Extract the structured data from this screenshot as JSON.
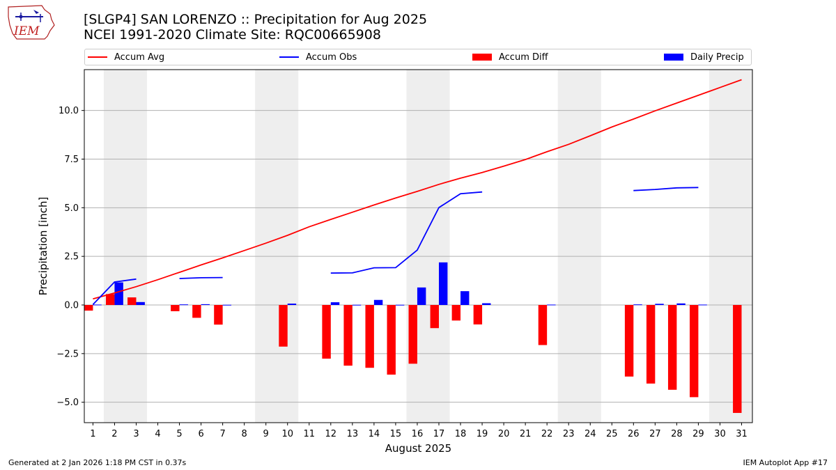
{
  "header": {
    "title_line1": "[SLGP4] SAN LORENZO :: Precipitation for Aug 2025",
    "title_line2": "NCEI 1991-2020 Climate Site: RQC00665908"
  },
  "logo": {
    "text": "IEM"
  },
  "footer": {
    "left": "Generated at 2 Jan 2026 1:18 PM CST in 0.37s",
    "right": "IEM Autoplot App #17"
  },
  "colors": {
    "avg": "#ff0000",
    "obs": "#0000ff",
    "diff": "#ff0000",
    "daily": "#0000ff",
    "weekend": "#eeeeee",
    "grid": "#b0b0b0"
  },
  "chart_data": {
    "type": "bar",
    "xlabel": "August 2025",
    "ylabel": "Precipitation [inch]",
    "xlim": [
      0.6,
      31.5
    ],
    "ylim": [
      -6.05,
      12.1
    ],
    "yticks": [
      -5.0,
      -2.5,
      0.0,
      2.5,
      5.0,
      7.5,
      10.0
    ],
    "ytick_labels": [
      "−5.0",
      "−2.5",
      "0.0",
      "2.5",
      "5.0",
      "7.5",
      "10.0"
    ],
    "grid": "horizontal",
    "weekend_shading": [
      [
        1.5,
        3.5
      ],
      [
        8.5,
        10.5
      ],
      [
        15.5,
        17.5
      ],
      [
        22.5,
        24.5
      ],
      [
        29.5,
        31.5
      ]
    ],
    "days": [
      1,
      2,
      3,
      4,
      5,
      6,
      7,
      8,
      9,
      10,
      11,
      12,
      13,
      14,
      15,
      16,
      17,
      18,
      19,
      20,
      21,
      22,
      23,
      24,
      25,
      26,
      27,
      28,
      29,
      30,
      31
    ],
    "legend": [
      {
        "name": "Accum Avg",
        "kind": "line",
        "color": "#ff0000"
      },
      {
        "name": "Accum Obs",
        "kind": "line",
        "color": "#0000ff"
      },
      {
        "name": "Accum Diff",
        "kind": "bar",
        "color": "#ff0000"
      },
      {
        "name": "Daily Precip",
        "kind": "bar",
        "color": "#0000ff"
      }
    ],
    "series": [
      {
        "name": "Accum Avg",
        "type": "line",
        "values": [
          0.31,
          0.62,
          0.94,
          1.3,
          1.68,
          2.06,
          2.42,
          2.8,
          3.18,
          3.58,
          4.02,
          4.4,
          4.77,
          5.14,
          5.5,
          5.84,
          6.2,
          6.52,
          6.81,
          7.14,
          7.48,
          7.88,
          8.26,
          8.7,
          9.15,
          9.56,
          9.98,
          10.38,
          10.78,
          11.18,
          11.58
        ]
      },
      {
        "name": "Accum Obs",
        "type": "line",
        "values": [
          0.02,
          1.18,
          1.33,
          null,
          1.36,
          1.4,
          1.41,
          null,
          null,
          null,
          null,
          1.64,
          1.65,
          1.91,
          1.92,
          2.82,
          5.01,
          5.72,
          5.81,
          null,
          null,
          null,
          null,
          null,
          null,
          5.88,
          5.94,
          6.02,
          6.04,
          null,
          null
        ]
      },
      {
        "name": "Accum Diff",
        "type": "bar",
        "values": [
          -0.29,
          0.56,
          0.39,
          null,
          -0.32,
          -0.66,
          -1.01,
          null,
          null,
          -2.14,
          null,
          -2.76,
          -3.12,
          -3.23,
          -3.58,
          -3.02,
          -1.19,
          -0.8,
          -1.0,
          null,
          null,
          -2.06,
          null,
          null,
          null,
          -3.68,
          -4.04,
          -4.36,
          -4.74,
          null,
          -5.55
        ]
      },
      {
        "name": "Daily Precip",
        "type": "bar",
        "values": [
          0.02,
          1.16,
          0.15,
          null,
          0.03,
          0.04,
          0.01,
          null,
          null,
          0.07,
          null,
          0.14,
          0.01,
          0.26,
          0.01,
          0.9,
          2.19,
          0.71,
          0.09,
          null,
          null,
          0.02,
          null,
          null,
          null,
          0.03,
          0.06,
          0.08,
          0.02,
          null,
          null
        ]
      }
    ]
  }
}
